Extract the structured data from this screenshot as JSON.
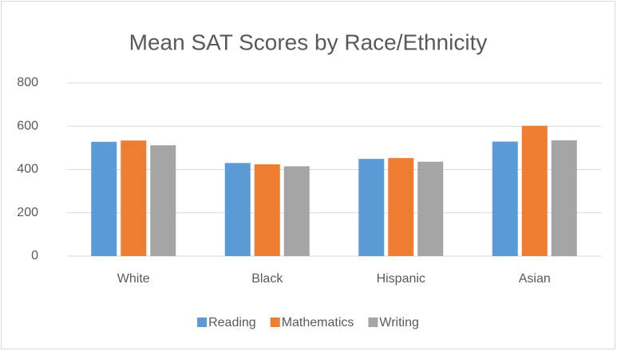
{
  "chart_data": {
    "type": "bar",
    "title": "Mean SAT Scores by Race/Ethnicity",
    "categories": [
      "White",
      "Black",
      "Hispanic",
      "Asian"
    ],
    "series": [
      {
        "name": "Reading",
        "color": "#5b9bd5",
        "values": [
          528,
          430,
          449,
          529
        ]
      },
      {
        "name": "Mathematics",
        "color": "#ed7d31",
        "values": [
          534,
          424,
          453,
          602
        ]
      },
      {
        "name": "Writing",
        "color": "#a5a5a5",
        "values": [
          512,
          415,
          436,
          535
        ]
      }
    ],
    "ylim": [
      0,
      800
    ],
    "yticks": [
      0,
      200,
      400,
      600,
      800
    ],
    "grid": true,
    "legend": "bottom"
  }
}
